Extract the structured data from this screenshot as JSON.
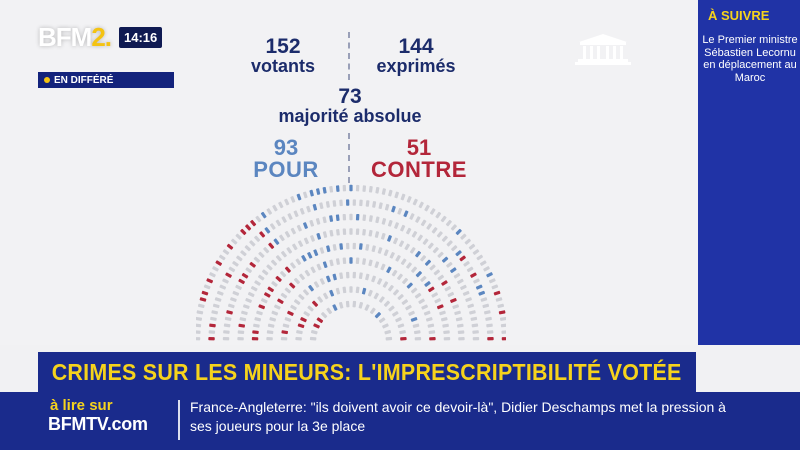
{
  "broadcast": {
    "channel_main": "BFM",
    "channel_num": "2.",
    "time": "14:16",
    "replay_label": "EN DIFFÉRÉ"
  },
  "vote": {
    "votants_num": "152",
    "votants_label": "votants",
    "exprimes_num": "144",
    "exprimes_label": "exprimés",
    "majorite_num": "73",
    "majorite_label": "majorité absolue",
    "pour_num": "93",
    "pour_label": "POUR",
    "contre_num": "51",
    "contre_label": "CONTRE"
  },
  "headline": "CRIMES SUR LES MINEURS: L'IMPRESCRIPTIBILITÉ VOTÉE",
  "sidebar": {
    "title": "À SUIVRE",
    "text": "Le Premier ministre Sébastien Lecornu en déplacement au Maroc"
  },
  "ticker": {
    "read_label": "à lire sur",
    "site": "BFMTV.com",
    "story": "France-Angleterre: \"ils doivent avoir ce devoir-là\", Didier Deschamps met la pression à ses joueurs pour la 3e place"
  },
  "colors": {
    "pour": "#5b86c0",
    "contre": "#b3263a",
    "absent": "#cfd0d6",
    "navy": "#1a2b8c",
    "yellow": "#f6d31c"
  }
}
